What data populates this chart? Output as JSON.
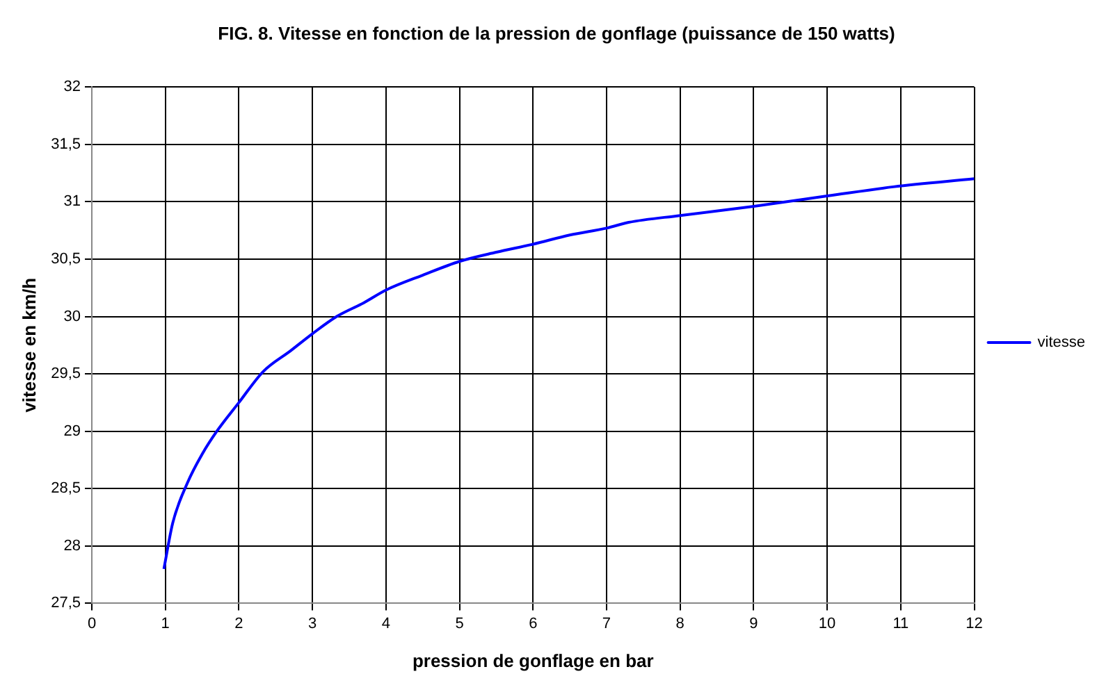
{
  "chart_data": {
    "type": "line",
    "title": "FIG. 8. Vitesse en fonction de la pression de gonflage (puissance de 150 watts)",
    "xlabel": "pression de gonflage en bar",
    "ylabel": "vitesse en km/h",
    "x": [
      0.98,
      1.1,
      1.3,
      1.5,
      1.7,
      2.0,
      2.33,
      2.7,
      3.0,
      3.33,
      3.7,
      4.0,
      4.5,
      5.0,
      5.5,
      6.0,
      6.5,
      7.0,
      7.3,
      8.0,
      9.0,
      10.0,
      10.9,
      12.0
    ],
    "series": [
      {
        "name": "vitesse",
        "color": "#0000ff",
        "values": [
          27.8,
          28.2,
          28.55,
          28.8,
          29.0,
          29.25,
          29.52,
          29.7,
          29.85,
          30.0,
          30.12,
          30.23,
          30.36,
          30.48,
          30.56,
          30.63,
          30.71,
          30.77,
          30.82,
          30.88,
          30.96,
          31.05,
          31.13,
          31.2
        ]
      }
    ],
    "xlim": [
      0,
      12
    ],
    "xticks": [
      0,
      1,
      2,
      3,
      4,
      5,
      6,
      7,
      8,
      9,
      10,
      11,
      12
    ],
    "ylim": [
      27.5,
      32
    ],
    "yticks": [
      {
        "value": 27.5,
        "label": "27,5"
      },
      28,
      {
        "value": 28.5,
        "label": "28,5"
      },
      29,
      {
        "value": 29.5,
        "label": "29,5"
      },
      30,
      {
        "value": 30.5,
        "label": "30,5"
      },
      31,
      {
        "value": 31.5,
        "label": "31,5"
      },
      32
    ],
    "grid": true,
    "legend": "right",
    "marker": "none",
    "line_style": "solid"
  }
}
